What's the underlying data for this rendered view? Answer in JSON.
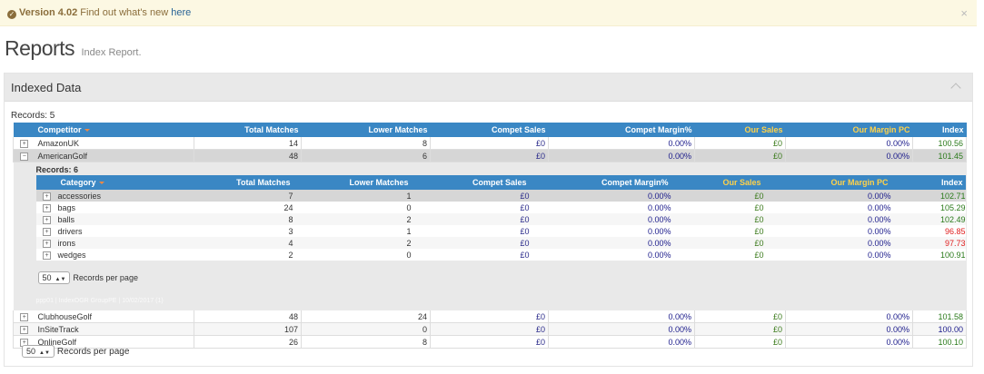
{
  "alert": {
    "version": "Version 4.02",
    "message": "Find out what's new",
    "link": "here",
    "close": "×"
  },
  "page": {
    "title": "Reports",
    "subtitle": "Index Report."
  },
  "panel": {
    "title": "Indexed Data"
  },
  "outer": {
    "records_label": "Records:",
    "records_count": "5",
    "headers": [
      "Competitor",
      "Total Matches",
      "Lower Matches",
      "Compet Sales",
      "Compet Margin%",
      "Our Sales",
      "Our Margin PC",
      "Index"
    ],
    "rows": [
      {
        "expander": "⊞",
        "name": "AmazonUK",
        "total": "14",
        "lower": "8",
        "compet_sales": "£0",
        "compet_margin": "0.00%",
        "our_sales": "£0",
        "our_margin": "0.00%",
        "index": "100.56"
      },
      {
        "expander": "⊟",
        "name": "AmericanGolf",
        "total": "48",
        "lower": "6",
        "compet_sales": "£0",
        "compet_margin": "0.00%",
        "our_sales": "£0",
        "our_margin": "0.00%",
        "index": "101.45"
      },
      {
        "expander": "⊞",
        "name": "ClubhouseGolf",
        "total": "48",
        "lower": "24",
        "compet_sales": "£0",
        "compet_margin": "0.00%",
        "our_sales": "£0",
        "our_margin": "0.00%",
        "index": "101.58"
      },
      {
        "expander": "⊞",
        "name": "InSiteTrack",
        "total": "107",
        "lower": "0",
        "compet_sales": "£0",
        "compet_margin": "0.00%",
        "our_sales": "£0",
        "our_margin": "0.00%",
        "index": "100.00"
      },
      {
        "expander": "⊞",
        "name": "OnlineGolf",
        "total": "26",
        "lower": "8",
        "compet_sales": "£0",
        "compet_margin": "0.00%",
        "our_sales": "£0",
        "our_margin": "0.00%",
        "index": "100.10"
      }
    ],
    "per_page_value": "50",
    "per_page_label": "Records per page"
  },
  "inner": {
    "records_label": "Records:",
    "records_count": "6",
    "headers": [
      "Category",
      "Total Matches",
      "Lower Matches",
      "Compet Sales",
      "Compet Margin%",
      "Our Sales",
      "Our Margin PC",
      "Index"
    ],
    "rows": [
      {
        "expander": "⊞",
        "name": "accessories",
        "total": "7",
        "lower": "1",
        "compet_sales": "£0",
        "compet_margin": "0.00%",
        "our_sales": "£0",
        "our_margin": "0.00%",
        "index": "102.71"
      },
      {
        "expander": "⊞",
        "name": "bags",
        "total": "24",
        "lower": "0",
        "compet_sales": "£0",
        "compet_margin": "0.00%",
        "our_sales": "£0",
        "our_margin": "0.00%",
        "index": "105.29"
      },
      {
        "expander": "⊞",
        "name": "balls",
        "total": "8",
        "lower": "2",
        "compet_sales": "£0",
        "compet_margin": "0.00%",
        "our_sales": "£0",
        "our_margin": "0.00%",
        "index": "102.49"
      },
      {
        "expander": "⊞",
        "name": "drivers",
        "total": "3",
        "lower": "1",
        "compet_sales": "£0",
        "compet_margin": "0.00%",
        "our_sales": "£0",
        "our_margin": "0.00%",
        "index": "96.85"
      },
      {
        "expander": "⊞",
        "name": "irons",
        "total": "4",
        "lower": "2",
        "compet_sales": "£0",
        "compet_margin": "0.00%",
        "our_sales": "£0",
        "our_margin": "0.00%",
        "index": "97.73"
      },
      {
        "expander": "⊞",
        "name": "wedges",
        "total": "2",
        "lower": "0",
        "compet_sales": "£0",
        "compet_margin": "0.00%",
        "our_sales": "£0",
        "our_margin": "0.00%",
        "index": "100.91"
      }
    ],
    "per_page_value": "50",
    "per_page_label": "Records per page",
    "footer_note": "ppp01 | IndexOGR GroupPE | 10/02/2017 (1)"
  },
  "colors": {
    "header": "#3a87c4",
    "gold_header": "#ffd24a",
    "index_up": "#2a7a1a",
    "index_down": "#e02020"
  }
}
